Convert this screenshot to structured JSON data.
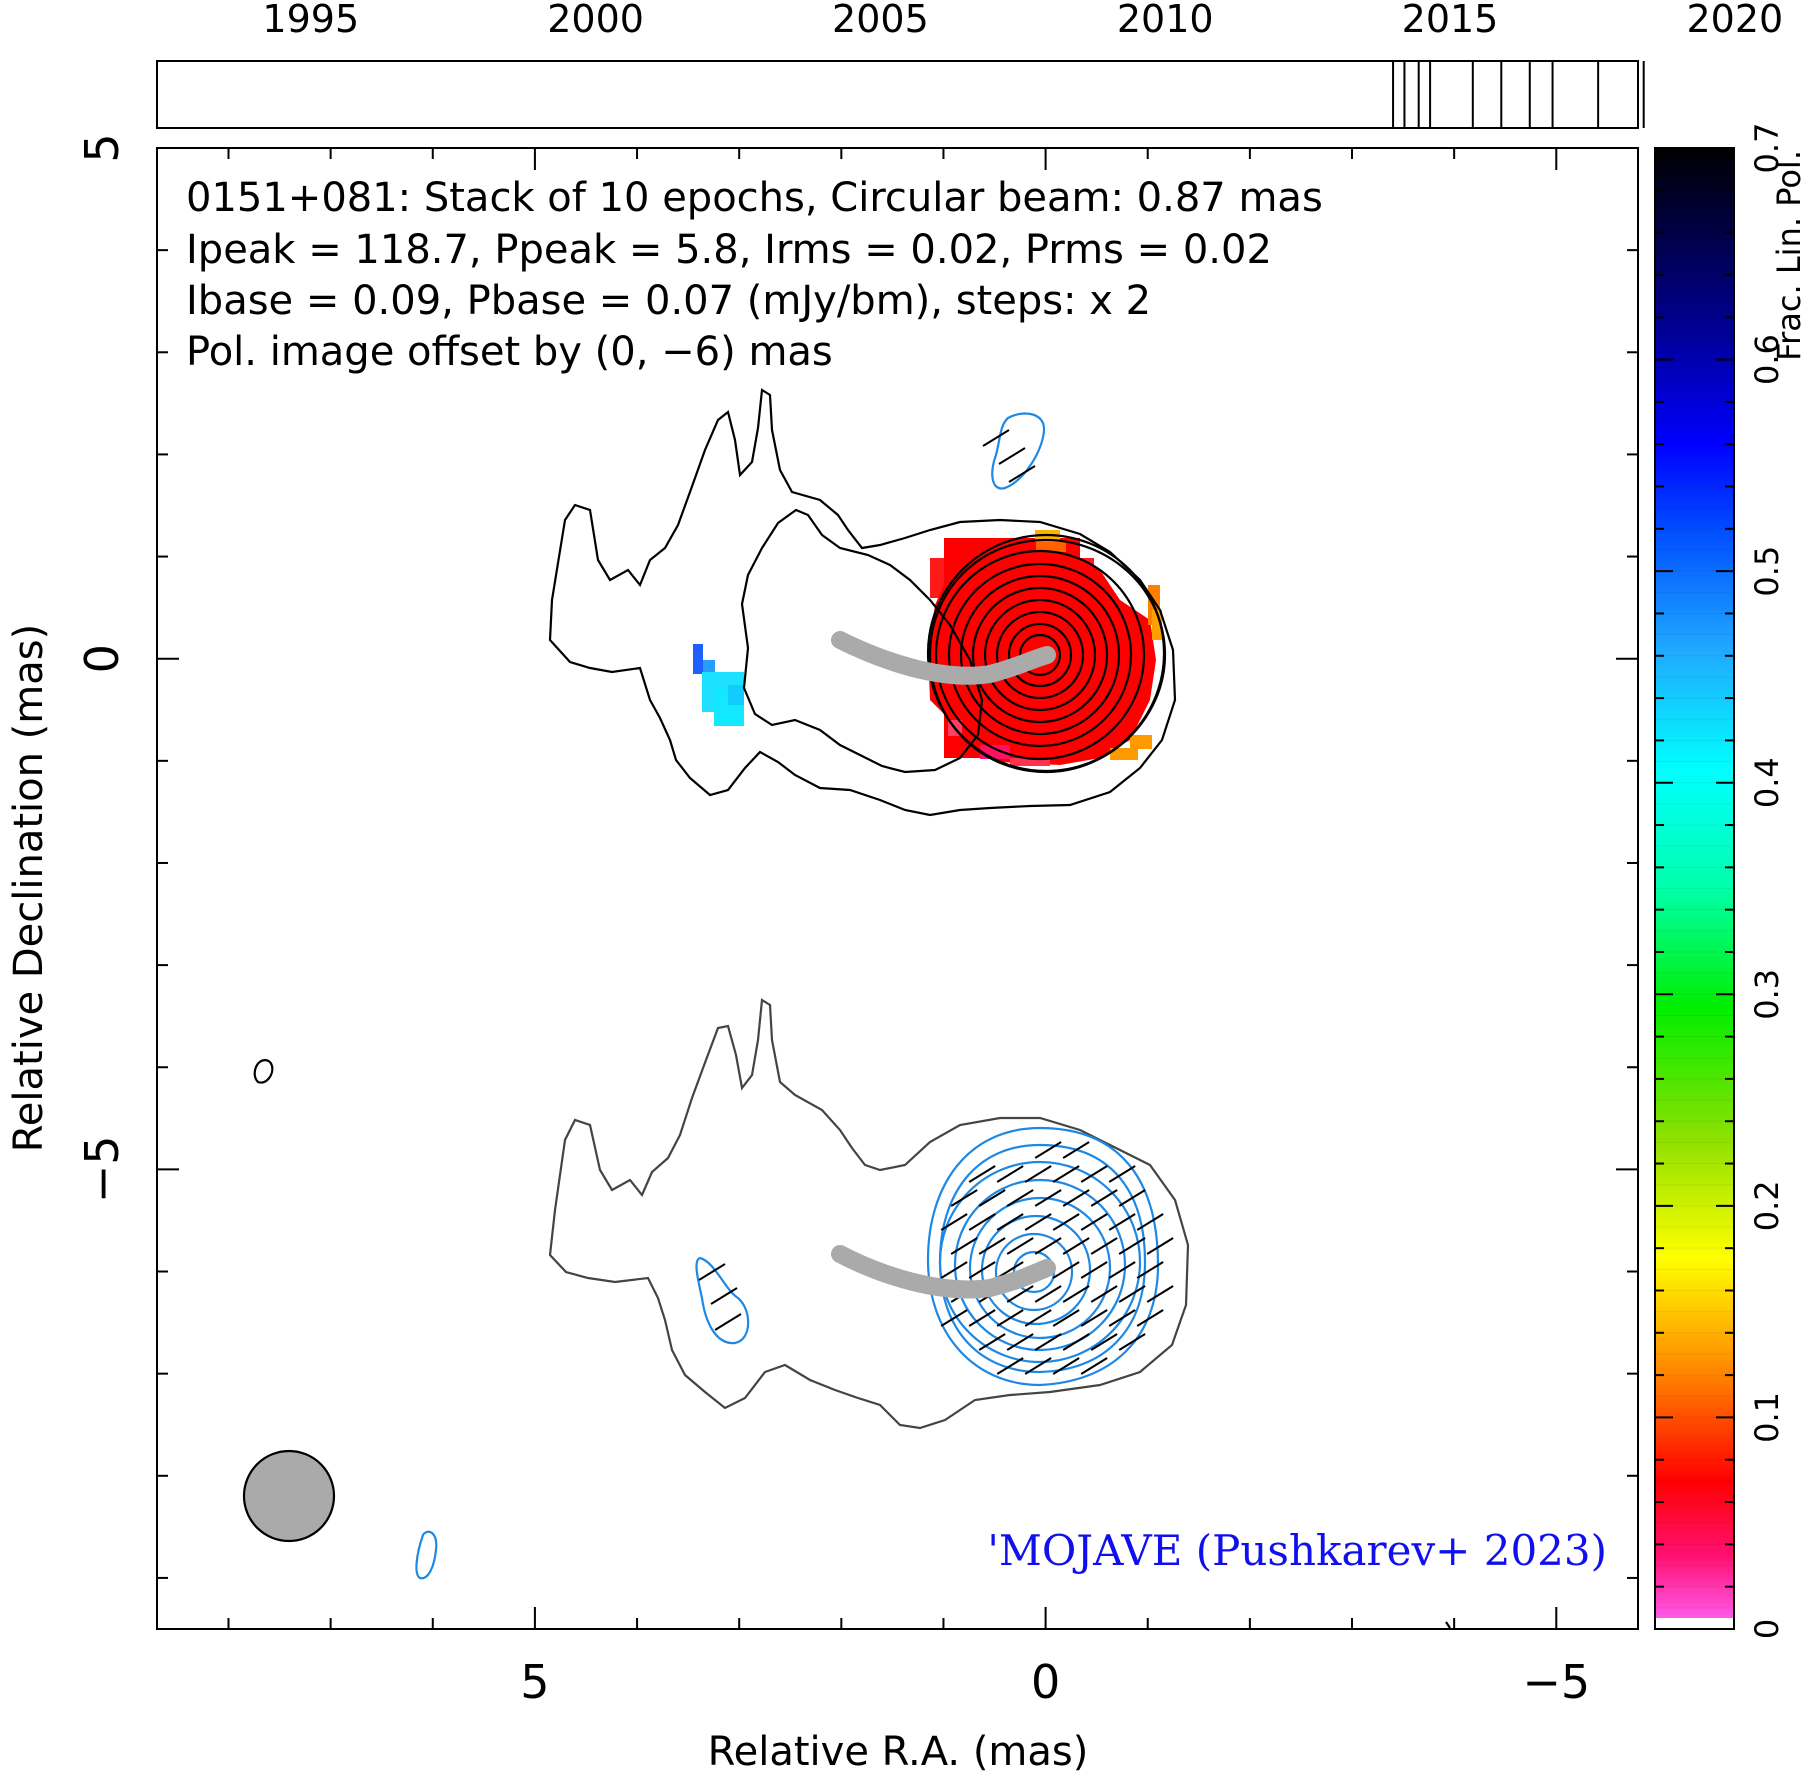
{
  "timeline": {
    "year_labels": [
      "1995",
      "2000",
      "2005",
      "2010",
      "2015",
      "2020"
    ],
    "year_values": [
      1995,
      2000,
      2005,
      2010,
      2015,
      2020
    ],
    "range": [
      1992.3,
      2018.3
    ],
    "epochs": [
      2014.0,
      2014.2,
      2014.45,
      2014.65,
      2015.4,
      2015.9,
      2016.4,
      2016.8,
      2017.6,
      2018.4
    ]
  },
  "header": {
    "line1": "0151+081: Stack of 10 epochs, Circular beam: 0.87 mas",
    "line2": "Ipeak = 118.7, Ppeak = 5.8, Irms = 0.02, Prms = 0.02",
    "line3": "Ibase = 0.09, Pbase = 0.07 (mJy/bm), steps: x 2",
    "line4": "Pol. image offset by (0, −6) mas",
    "line4_color": "#1e88e5"
  },
  "credit": {
    "text": "'MOJAVE (Pushkarev+ 2023)",
    "color": "#1010ee"
  },
  "colorbar": {
    "label": "Frac. Lin. Pol.",
    "range": [
      0,
      0.7
    ],
    "tick_labels": [
      "0",
      "0.1",
      "0.2",
      "0.3",
      "0.4",
      "0.5",
      "0.6",
      "0.7"
    ],
    "tick_values": [
      0,
      0.1,
      0.2,
      0.3,
      0.4,
      0.5,
      0.6,
      0.7
    ]
  },
  "chart_data": {
    "type": "contour-map",
    "xlabel": "Relative R.A. (mas)",
    "ylabel": "Relative Declination (mas)",
    "xlim": [
      8.7,
      -5.8
    ],
    "ylim": [
      -9.5,
      5
    ],
    "x_tick_labels": [
      "5",
      "0",
      "−5"
    ],
    "x_tick_values": [
      5,
      0,
      -5
    ],
    "y_tick_labels": [
      "5",
      "0",
      "−5"
    ],
    "y_tick_values": [
      5,
      0,
      -5
    ],
    "beam": {
      "x": 7.4,
      "y": -8.2,
      "diameter_mas": 0.87,
      "color": "#aaaaaa"
    },
    "source_core": {
      "x": 0,
      "y": 0
    },
    "pol_offset_mas": [
      0,
      -6
    ],
    "jet_ridge": [
      [
        2.0,
        0.1
      ],
      [
        1.6,
        -0.05
      ],
      [
        1.2,
        -0.15
      ],
      [
        0.8,
        -0.15
      ],
      [
        0.4,
        -0.1
      ],
      [
        0.1,
        0.0
      ]
    ],
    "frac_pol_pixels_core": 0.03,
    "frac_pol_pixels_knot": 0.4
  }
}
